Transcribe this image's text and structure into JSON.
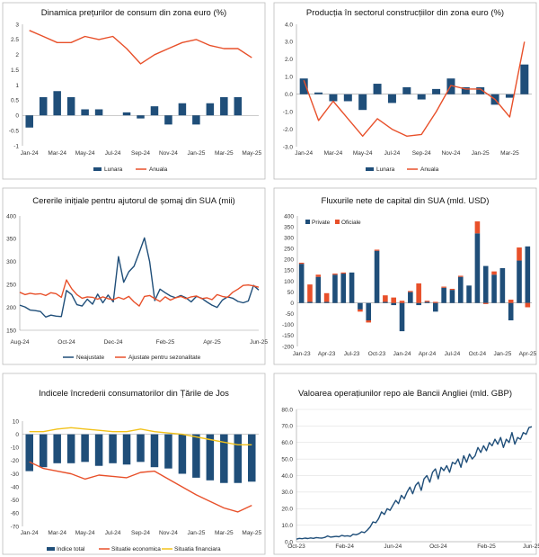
{
  "colors": {
    "navy": "#1f4e79",
    "orange": "#e8502a",
    "yellow": "#f2c21b"
  },
  "chart_data": [
    {
      "type": "bar+line",
      "title": "Dinamica prețurilor de consum din zona euro (%)",
      "ylim": [
        -1,
        3
      ],
      "yticks": [
        -1,
        -0.5,
        0,
        0.5,
        1,
        1.5,
        2,
        2.5,
        3
      ],
      "ytick_labels": [
        "-1",
        "-0.5",
        "0",
        "0.5",
        "1",
        "1.5",
        "2",
        "2.5",
        "3"
      ],
      "xticks": [
        "Jan-24",
        "Mar-24",
        "May-24",
        "Jul-24",
        "Sep-24",
        "Nov-24",
        "Jan-25",
        "Mar-25",
        "May-25"
      ],
      "n": 17,
      "bars": {
        "name": "Lunara",
        "values": [
          -0.4,
          0.6,
          0.8,
          0.6,
          0.2,
          0.2,
          0.0,
          0.1,
          -0.1,
          0.3,
          -0.3,
          0.4,
          -0.3,
          0.4,
          0.6,
          0.6,
          0.0
        ]
      },
      "lines": [
        {
          "name": "Anuala",
          "color": "orange",
          "values": [
            2.8,
            2.6,
            2.4,
            2.4,
            2.6,
            2.5,
            2.6,
            2.2,
            1.7,
            2.0,
            2.2,
            2.4,
            2.5,
            2.3,
            2.2,
            2.2,
            1.9
          ]
        }
      ],
      "legend": [
        "Lunara",
        "Anuala"
      ]
    },
    {
      "type": "bar+line",
      "title": "Producția în sectorul construcțiilor din zona euro (%)",
      "ylim": [
        -3,
        4
      ],
      "yticks": [
        -3,
        -2,
        -1,
        0,
        1,
        2,
        3,
        4
      ],
      "ytick_labels": [
        "-3.0",
        "-2.0",
        "-1.0",
        "0.0",
        "1.0",
        "2.0",
        "3.0",
        "4.0"
      ],
      "xticks": [
        "Jan-24",
        "Mar-24",
        "May-24",
        "Jul-24",
        "Sep-24",
        "Nov-24",
        "Jan-25",
        "Mar-25"
      ],
      "n": 16,
      "bars": {
        "name": "Lunara",
        "values": [
          0.9,
          0.1,
          -0.4,
          -0.4,
          -0.9,
          0.6,
          -0.5,
          0.4,
          -0.3,
          0.3,
          0.9,
          0.4,
          0.4,
          -0.6,
          -0.2,
          1.7
        ]
      },
      "lines": [
        {
          "name": "Anuala",
          "color": "orange",
          "values": [
            0.8,
            -1.5,
            -0.4,
            -1.4,
            -2.4,
            -1.4,
            -2.0,
            -2.4,
            -2.3,
            -1.0,
            0.5,
            0.3,
            0.3,
            -0.3,
            -1.3,
            3.0
          ]
        }
      ],
      "legend": [
        "Lunara",
        "Anuala"
      ]
    },
    {
      "type": "line",
      "title": "Cererile inițiale pentru ajutorul de șomaj din SUA (mii)",
      "ylim": [
        150,
        400
      ],
      "yticks": [
        150,
        200,
        250,
        300,
        350,
        400
      ],
      "ytick_labels": [
        "150",
        "200",
        "250",
        "300",
        "350",
        "400"
      ],
      "xticks": [
        "Aug-24",
        "Oct-24",
        "Dec-24",
        "Feb-25",
        "Apr-25",
        "Jun-25"
      ],
      "n": 47,
      "lines": [
        {
          "name": "Neajustate",
          "color": "navy",
          "values": [
            205,
            201,
            194,
            193,
            191,
            179,
            183,
            181,
            180,
            237,
            228,
            206,
            203,
            218,
            207,
            229,
            210,
            227,
            212,
            311,
            255,
            278,
            290,
            320,
            352,
            300,
            215,
            240,
            232,
            225,
            221,
            226,
            221,
            212,
            224,
            220,
            212,
            205,
            200,
            216,
            223,
            220,
            213,
            210,
            214,
            248,
            238
          ]
        },
        {
          "name": "Ajustate pentru sezonalitate",
          "color": "orange",
          "values": [
            233,
            228,
            231,
            229,
            230,
            226,
            232,
            230,
            222,
            260,
            241,
            228,
            220,
            223,
            222,
            218,
            223,
            219,
            217,
            222,
            218,
            224,
            212,
            203,
            224,
            226,
            219,
            213,
            223,
            216,
            221,
            224,
            219,
            223,
            225,
            219,
            221,
            217,
            228,
            224,
            222,
            233,
            240,
            248,
            249,
            247,
            244
          ]
        }
      ],
      "legend": [
        "Neajustate",
        "Ajustate pentru sezonalitate"
      ]
    },
    {
      "type": "stacked-bar",
      "title": "Fluxurile nete de capital din SUA (mld. USD)",
      "ylim": [
        -200,
        400
      ],
      "yticks": [
        -200,
        -150,
        -100,
        -50,
        0,
        50,
        100,
        150,
        200,
        250,
        300,
        350,
        400
      ],
      "ytick_labels": [
        "-200",
        "-150",
        "-100",
        "-50",
        "0",
        "50",
        "100",
        "150",
        "200",
        "250",
        "300",
        "350",
        "400"
      ],
      "xticks": [
        "Jan-23",
        "Apr-23",
        "Jul-23",
        "Oct-23",
        "Jan-24",
        "Apr-24",
        "Jul-24",
        "Oct-24",
        "Jan-25",
        "Apr-25"
      ],
      "n": 28,
      "series": [
        {
          "name": "Private",
          "color": "navy",
          "values": [
            180,
            5,
            120,
            5,
            130,
            135,
            140,
            -30,
            -80,
            240,
            5,
            -10,
            -130,
            50,
            -10,
            5,
            -40,
            70,
            60,
            120,
            80,
            320,
            170,
            130,
            160,
            -80,
            195,
            260
          ]
        },
        {
          "name": "Oficiale",
          "color": "orange",
          "values": [
            5,
            80,
            10,
            40,
            5,
            5,
            0,
            -10,
            -10,
            5,
            30,
            25,
            10,
            5,
            90,
            5,
            5,
            5,
            5,
            5,
            0,
            55,
            -5,
            15,
            0,
            15,
            60,
            -20
          ]
        }
      ],
      "legend": [
        "Private",
        "Oficiale"
      ]
    },
    {
      "type": "bar+line",
      "title": "Indicele încrederii consumatorilor din Țările de Jos",
      "ylim": [
        -70,
        10
      ],
      "yticks": [
        -70,
        -60,
        -50,
        -40,
        -30,
        -20,
        -10,
        0,
        10
      ],
      "ytick_labels": [
        "-70",
        "-60",
        "-50",
        "-40",
        "-30",
        "-20",
        "-10",
        "0",
        "10"
      ],
      "xticks": [
        "Jan-24",
        "Mar-24",
        "May-24",
        "Jul-24",
        "Sep-24",
        "Nov-24",
        "Jan-25",
        "Mar-25",
        "May-25"
      ],
      "n": 17,
      "bars": {
        "name": "Indice total",
        "values": [
          -28,
          -25,
          -22,
          -22,
          -21,
          -24,
          -22,
          -23,
          -21,
          -25,
          -26,
          -30,
          -33,
          -35,
          -37,
          -37,
          -36
        ]
      },
      "lines": [
        {
          "name": "Situatie economica",
          "color": "orange",
          "values": [
            -21,
            -26,
            -28,
            -30,
            -34,
            -31,
            -32,
            -33,
            -29,
            -28,
            -34,
            -40,
            -46,
            -51,
            -56,
            -59,
            -54
          ]
        },
        {
          "name": "Situatia financiara",
          "color": "yellow",
          "values": [
            2,
            2,
            4,
            5,
            4,
            3,
            2,
            2,
            4,
            2,
            1,
            0,
            -2,
            -4,
            -6,
            -8,
            -8
          ]
        }
      ],
      "legend": [
        "Indice total",
        "Situatie economica",
        "Situatia financiara"
      ]
    },
    {
      "type": "line",
      "title": "Valoarea operațiunilor repo ale Bancii Angliei (mld. GBP)",
      "ylim": [
        0,
        80
      ],
      "yticks": [
        0,
        10,
        20,
        30,
        40,
        50,
        60,
        70,
        80
      ],
      "ytick_labels": [
        "0.0",
        "10.0",
        "20.0",
        "30.0",
        "40.0",
        "50.0",
        "60.0",
        "70.0",
        "80.0"
      ],
      "xticks": [
        "Oct-23",
        "Feb-24",
        "Jun-24",
        "Oct-24",
        "Feb-25",
        "Jun-25"
      ],
      "n": 84,
      "lines": [
        {
          "name": "Repo",
          "color": "navy",
          "values": [
            1.5,
            2.0,
            1.8,
            2.2,
            1.9,
            2.3,
            2.0,
            2.5,
            2.3,
            2.2,
            2.6,
            3.5,
            2.8,
            3.0,
            3.2,
            3.0,
            3.8,
            3.4,
            3.6,
            3.2,
            4.5,
            4.2,
            4.8,
            6.0,
            5.5,
            7.0,
            9.0,
            12.0,
            11.5,
            14.0,
            18.0,
            16.5,
            20.0,
            19.0,
            22.0,
            25.0,
            23.0,
            28.0,
            26.0,
            30.0,
            33.0,
            29.0,
            34.0,
            36.0,
            31.0,
            38.0,
            40.0,
            36.0,
            42.0,
            44.0,
            38.0,
            45.0,
            43.0,
            46.0,
            42.0,
            48.0,
            47.0,
            50.0,
            45.0,
            52.0,
            48.0,
            53.0,
            50.0,
            52.0,
            57.0,
            54.0,
            58.0,
            55.0,
            60.0,
            58.0,
            62.0,
            59.0,
            63.0,
            57.0,
            62.0,
            60.0,
            66.0,
            59.0,
            63.0,
            62.0,
            66.0,
            65.0,
            69.0,
            69.5
          ]
        }
      ],
      "legend": []
    }
  ]
}
